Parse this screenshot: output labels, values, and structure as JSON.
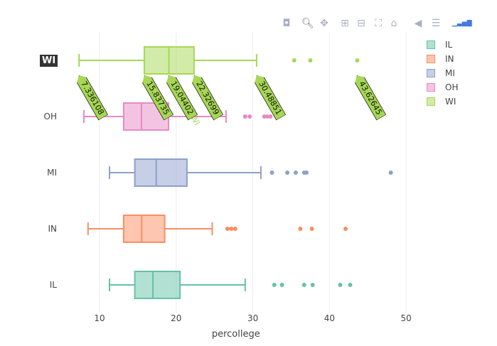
{
  "chart_data": {
    "type": "box",
    "orientation": "horizontal",
    "xlabel": "percollege",
    "xlim": [
      3,
      53
    ],
    "xticks": [
      10,
      20,
      30,
      40,
      50
    ],
    "grid": true,
    "legend_position": "top-right",
    "series": [
      {
        "name": "IL",
        "color": "#66c2a5",
        "min": 11.3,
        "q1": 14.6,
        "median": 16.96,
        "q3": 20.5,
        "max": 29.0,
        "outliers": [
          32.8,
          33.8,
          36.7,
          37.8,
          41.4,
          42.7
        ]
      },
      {
        "name": "IN",
        "color": "#fc8d62",
        "min": 8.5,
        "q1": 13.15,
        "median": 15.5,
        "q3": 18.5,
        "max": 24.7,
        "outliers": [
          26.7,
          27.2,
          27.7,
          36.2,
          37.7,
          42.1
        ]
      },
      {
        "name": "MI",
        "color": "#8da0cb",
        "min": 11.3,
        "q1": 14.6,
        "median": 17.4,
        "q3": 21.4,
        "max": 31.05,
        "outliers": [
          32.5,
          34.5,
          35.6,
          36.7,
          37.0,
          48.0
        ]
      },
      {
        "name": "OH",
        "color": "#e78ac3",
        "min": 7.96,
        "q1": 13.15,
        "median": 15.47,
        "q3": 19.0,
        "max": 26.5,
        "outliers": [
          29.0,
          29.6,
          31.5,
          31.9,
          32.3
        ]
      },
      {
        "name": "WI",
        "color": "#a6d854",
        "min": 7.336108,
        "q1": 15.83735,
        "median": 19.04402,
        "q3": 22.32699,
        "max": 30.48851,
        "outliers": [
          35.4,
          37.5,
          43.62645
        ]
      }
    ]
  },
  "hover": {
    "trace": "WI",
    "trace_side_label": "WI",
    "labels": [
      {
        "text": "7.336108",
        "value": 7.336108
      },
      {
        "text": "15.83735",
        "value": 15.83735
      },
      {
        "text": "19.04402",
        "value": 19.04402
      },
      {
        "text": "22.32699",
        "value": 22.32699
      },
      {
        "text": "30.48851",
        "value": 30.48851
      },
      {
        "text": "43.62645",
        "value": 43.62645
      }
    ]
  },
  "toolbar": [
    "camera-icon",
    "zoom-icon",
    "pan-icon",
    "zoom-in-icon",
    "zoom-out-icon",
    "autoscale-icon",
    "reset-axes-icon",
    "hover-closest-icon",
    "hover-compare-icon",
    "plotly-logo-icon"
  ]
}
